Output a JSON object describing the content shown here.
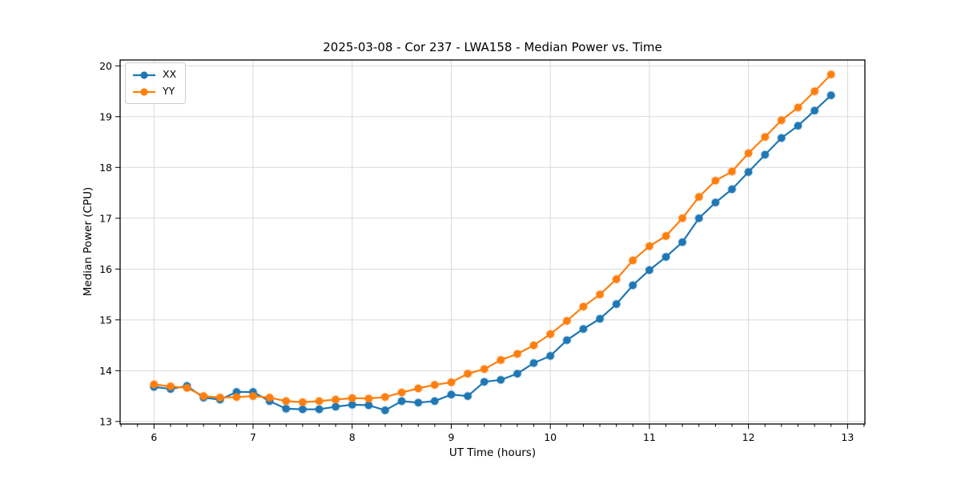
{
  "chart_data": {
    "type": "line",
    "title": "2025-03-08 - Cor 237 - LWA158 - Median Power vs. Time",
    "xlabel": "UT Time (hours)",
    "ylabel": "Median Power (CPU)",
    "x": [
      6.0,
      6.167,
      6.333,
      6.5,
      6.667,
      6.833,
      7.0,
      7.167,
      7.333,
      7.5,
      7.667,
      7.833,
      8.0,
      8.167,
      8.333,
      8.5,
      8.667,
      8.833,
      9.0,
      9.167,
      9.333,
      9.5,
      9.667,
      9.833,
      10.0,
      10.167,
      10.333,
      10.5,
      10.667,
      10.833,
      11.0,
      11.167,
      11.333,
      11.5,
      11.667,
      11.833,
      12.0,
      12.167,
      12.333,
      12.5,
      12.667,
      12.833
    ],
    "series": [
      {
        "name": "XX",
        "color": "#1f77b4",
        "values": [
          13.68,
          13.64,
          13.7,
          13.47,
          13.43,
          13.58,
          13.58,
          13.4,
          13.25,
          13.24,
          13.24,
          13.29,
          13.33,
          13.32,
          13.22,
          13.4,
          13.37,
          13.4,
          13.53,
          13.5,
          13.78,
          13.82,
          13.94,
          14.15,
          14.29,
          14.6,
          14.82,
          15.02,
          15.31,
          15.68,
          15.98,
          16.24,
          16.53,
          17.0,
          17.31,
          17.57,
          17.91,
          18.25,
          18.58,
          18.82,
          19.12,
          19.42
        ]
      },
      {
        "name": "YY",
        "color": "#ff7f0e",
        "values": [
          13.73,
          13.69,
          13.66,
          13.5,
          13.47,
          13.48,
          13.5,
          13.47,
          13.4,
          13.38,
          13.4,
          13.43,
          13.46,
          13.45,
          13.48,
          13.57,
          13.65,
          13.72,
          13.77,
          13.94,
          14.03,
          14.21,
          14.33,
          14.5,
          14.72,
          14.98,
          15.26,
          15.5,
          15.8,
          16.17,
          16.45,
          16.65,
          17.0,
          17.42,
          17.74,
          17.92,
          18.28,
          18.6,
          18.93,
          19.18,
          19.5,
          19.83
        ]
      }
    ],
    "xlim": [
      5.658,
      13.175
    ],
    "ylim": [
      12.95,
      20.115
    ],
    "x_ticks": [
      6,
      7,
      8,
      9,
      10,
      11,
      12,
      13
    ],
    "y_ticks": [
      13,
      14,
      15,
      16,
      17,
      18,
      19,
      20
    ],
    "x_minor_subdivisions": 6,
    "grid": true,
    "legend_position": "upper-left",
    "grid_color": "#d9d9d9",
    "axis_color": "#000000",
    "background": "#ffffff"
  }
}
